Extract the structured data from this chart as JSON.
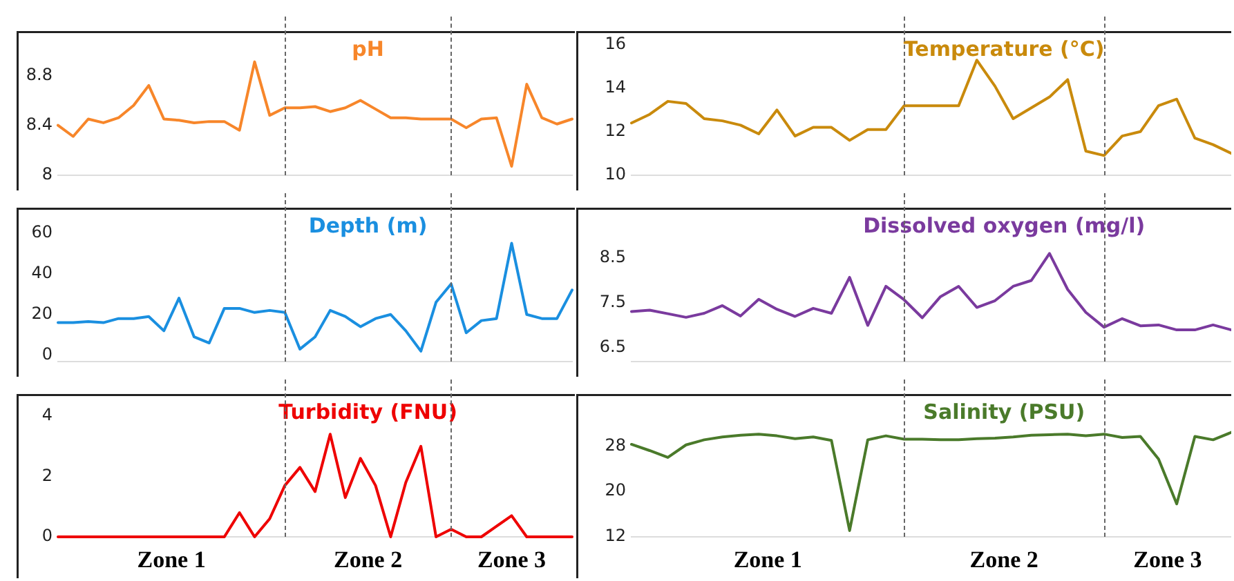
{
  "chart_data": [
    {
      "type": "line",
      "title": "pH",
      "categories": [
        null,
        null,
        null,
        null,
        null,
        null,
        null,
        null,
        null,
        null,
        null,
        null,
        null,
        null,
        null,
        null,
        null,
        null,
        null,
        null,
        null,
        null,
        null,
        null,
        null,
        null,
        null,
        null,
        null,
        null,
        null,
        null,
        null,
        null,
        null
      ],
      "series": [
        {
          "color": "#f7862a",
          "values": [
            8.4,
            8.31,
            8.45,
            8.42,
            8.46,
            8.56,
            8.72,
            8.45,
            8.44,
            8.42,
            8.43,
            8.43,
            8.36,
            8.91,
            8.48,
            8.54,
            8.54,
            8.55,
            8.51,
            8.54,
            8.6,
            8.53,
            8.46,
            8.46,
            8.45,
            8.45,
            8.45,
            8.38,
            8.45,
            8.46,
            8.07,
            8.73,
            8.46,
            8.41,
            8.45
          ]
        }
      ],
      "ylim": [
        8,
        9.15
      ],
      "yticks": [
        8,
        8.4,
        8.8
      ],
      "grid": false,
      "marker": "none",
      "line_style": "solid"
    },
    {
      "type": "line",
      "title": "Temperature (°C)",
      "categories": [
        null,
        null,
        null,
        null,
        null,
        null,
        null,
        null,
        null,
        null,
        null,
        null,
        null,
        null,
        null,
        null,
        null,
        null,
        null,
        null,
        null,
        null,
        null,
        null,
        null,
        null,
        null,
        null,
        null,
        null,
        null,
        null,
        null,
        null
      ],
      "series": [
        {
          "color": "#c98a0c",
          "values": [
            12.4,
            12.8,
            13.4,
            13.3,
            12.6,
            12.5,
            12.3,
            11.9,
            13.0,
            11.8,
            12.2,
            12.2,
            11.6,
            12.1,
            12.1,
            13.2,
            13.2,
            13.2,
            13.2,
            15.3,
            14.1,
            12.6,
            13.1,
            13.6,
            14.4,
            11.1,
            10.9,
            11.8,
            12.0,
            13.2,
            13.5,
            11.7,
            11.4,
            11.0
          ]
        }
      ],
      "ylim": [
        10,
        16.6
      ],
      "yticks": [
        10,
        12,
        14,
        16
      ],
      "grid": false,
      "marker": "none",
      "line_style": "solid"
    },
    {
      "type": "line",
      "title": "Depth (m)",
      "categories": [
        null,
        null,
        null,
        null,
        null,
        null,
        null,
        null,
        null,
        null,
        null,
        null,
        null,
        null,
        null,
        null,
        null,
        null,
        null,
        null,
        null,
        null,
        null,
        null,
        null,
        null,
        null,
        null,
        null,
        null,
        null,
        null,
        null,
        null,
        null
      ],
      "series": [
        {
          "color": "#1a8fe0",
          "values": [
            16,
            16,
            16.5,
            16,
            18,
            18,
            19,
            12,
            28,
            9,
            6,
            23,
            23,
            21,
            22,
            21,
            3,
            9,
            22,
            19,
            14,
            18,
            20,
            12,
            2,
            26,
            35,
            11,
            17,
            18,
            55,
            20,
            18,
            18,
            32
          ]
        }
      ],
      "ylim": [
        -3,
        72
      ],
      "yticks": [
        0,
        20,
        40,
        60
      ],
      "grid": false,
      "marker": "none",
      "line_style": "solid"
    },
    {
      "type": "line",
      "title": "Dissolved oxygen (mg/l)",
      "categories": [
        null,
        null,
        null,
        null,
        null,
        null,
        null,
        null,
        null,
        null,
        null,
        null,
        null,
        null,
        null,
        null,
        null,
        null,
        null,
        null,
        null,
        null,
        null,
        null,
        null,
        null,
        null,
        null,
        null,
        null,
        null,
        null,
        null,
        null
      ],
      "series": [
        {
          "color": "#7a3a9e",
          "values": [
            7.31,
            7.34,
            7.26,
            7.18,
            7.27,
            7.44,
            7.21,
            7.58,
            7.36,
            7.2,
            7.38,
            7.27,
            8.07,
            7.0,
            7.87,
            7.57,
            7.17,
            7.64,
            7.87,
            7.4,
            7.55,
            7.87,
            8.0,
            8.6,
            7.8,
            7.29,
            6.96,
            7.15,
            6.99,
            7.01,
            6.9,
            6.9,
            7.01,
            6.9
          ]
        }
      ],
      "ylim": [
        6.2,
        9.6
      ],
      "yticks": [
        6.5,
        7.5,
        8.5
      ],
      "grid": false,
      "marker": "none",
      "line_style": "solid"
    },
    {
      "type": "line",
      "title": "Turbidity (FNU)",
      "categories": [
        null,
        null,
        null,
        null,
        null,
        null,
        null,
        null,
        null,
        null,
        null,
        null,
        null,
        null,
        null,
        null,
        null,
        null,
        null,
        null,
        null,
        null,
        null,
        null,
        null,
        null,
        null,
        null,
        null,
        null,
        null,
        null,
        null,
        null,
        null
      ],
      "series": [
        {
          "color": "#ee0000",
          "values": [
            0,
            0,
            0,
            0,
            0,
            0,
            0,
            0,
            0,
            0,
            0,
            0,
            0.8,
            0,
            0.6,
            1.7,
            2.3,
            1.5,
            3.4,
            1.3,
            2.6,
            1.7,
            0,
            1.8,
            3.0,
            0,
            0.25,
            0,
            0,
            0.35,
            0.7,
            0,
            0,
            0,
            0
          ]
        }
      ],
      "ylim": [
        0,
        4.7
      ],
      "yticks": [
        0,
        2,
        4
      ],
      "annotations": [
        "Zone 1",
        "Zone 2",
        "Zone 3"
      ],
      "grid": false,
      "marker": "none",
      "line_style": "solid"
    },
    {
      "type": "line",
      "title": "Salinity (PSU)",
      "categories": [
        null,
        null,
        null,
        null,
        null,
        null,
        null,
        null,
        null,
        null,
        null,
        null,
        null,
        null,
        null,
        null,
        null,
        null,
        null,
        null,
        null,
        null,
        null,
        null,
        null,
        null,
        null,
        null,
        null,
        null,
        null,
        null,
        null,
        null
      ],
      "series": [
        {
          "color": "#4a7a2a",
          "values": [
            28.3,
            27.2,
            26.0,
            28.2,
            29.1,
            29.6,
            29.9,
            30.1,
            29.8,
            29.3,
            29.6,
            29.0,
            13.1,
            29.1,
            29.8,
            29.2,
            29.2,
            29.1,
            29.1,
            29.3,
            29.4,
            29.6,
            29.9,
            30.0,
            30.1,
            29.8,
            30.1,
            29.5,
            29.7,
            25.7,
            17.8,
            29.7,
            29.1,
            30.4
          ]
        }
      ],
      "ylim": [
        12,
        37
      ],
      "yticks": [
        12,
        20,
        28
      ],
      "annotations": [
        "Zone 1",
        "Zone 2",
        "Zone 3"
      ],
      "grid": false,
      "marker": "none",
      "line_style": "solid"
    }
  ]
}
